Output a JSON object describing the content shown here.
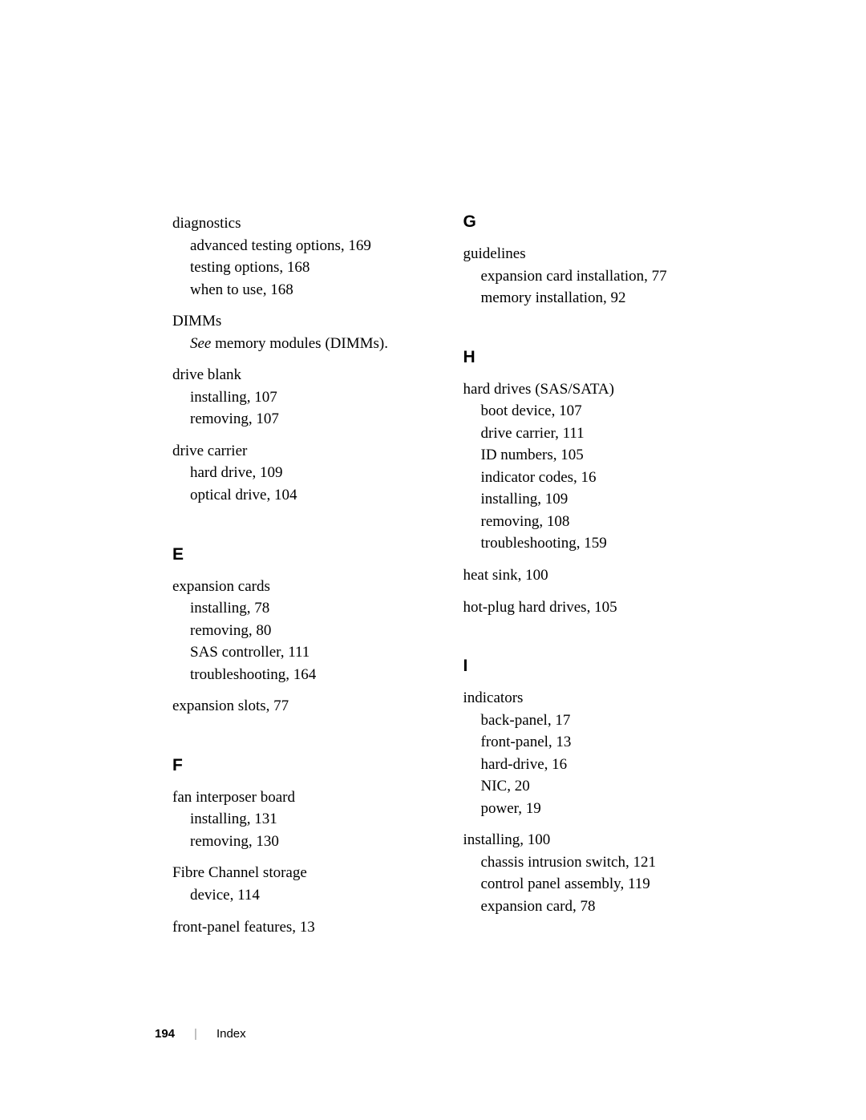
{
  "left": {
    "diagnostics": {
      "head": "diagnostics",
      "items": [
        "advanced testing options, 169",
        "testing options, 168",
        "when to use, 168"
      ]
    },
    "dimms": {
      "head": "DIMMs",
      "see_prefix": "See",
      "see_rest": " memory modules (DIMMs)."
    },
    "drive_blank": {
      "head": "drive blank",
      "items": [
        "installing, 107",
        "removing, 107"
      ]
    },
    "drive_carrier": {
      "head": "drive carrier",
      "items": [
        "hard drive, 109",
        "optical drive, 104"
      ]
    },
    "letter_e": "E",
    "expansion_cards": {
      "head": "expansion cards",
      "items": [
        "installing, 78",
        "removing, 80",
        "SAS controller, 111",
        "troubleshooting, 164"
      ]
    },
    "expansion_slots": {
      "head": "expansion slots, 77"
    },
    "letter_f": "F",
    "fan_interposer": {
      "head": "fan interposer board",
      "items": [
        "installing, 131",
        "removing, 130"
      ]
    },
    "fibre_channel": {
      "head": "Fibre Channel storage",
      "items": [
        "device, 114"
      ]
    },
    "front_panel": {
      "head": "front-panel features, 13"
    }
  },
  "right": {
    "letter_g": "G",
    "guidelines": {
      "head": "guidelines",
      "items": [
        "expansion card installation, 77",
        "memory installation, 92"
      ]
    },
    "letter_h": "H",
    "hard_drives": {
      "head": "hard drives (SAS/SATA)",
      "items": [
        "boot device, 107",
        "drive carrier, 111",
        "ID numbers, 105",
        "indicator codes, 16",
        "installing, 109",
        "removing, 108",
        "troubleshooting, 159"
      ]
    },
    "heat_sink": {
      "head": "heat sink, 100"
    },
    "hot_plug": {
      "head": "hot-plug hard drives, 105"
    },
    "letter_i": "I",
    "indicators": {
      "head": "indicators",
      "items": [
        "back-panel, 17",
        "front-panel, 13",
        "hard-drive, 16",
        "NIC, 20",
        "power, 19"
      ]
    },
    "installing": {
      "head": "installing, 100",
      "items": [
        "chassis intrusion switch, 121",
        "control panel assembly, 119",
        "expansion card, 78"
      ]
    }
  },
  "footer": {
    "pagenum": "194",
    "sep": "|",
    "label": "Index"
  }
}
